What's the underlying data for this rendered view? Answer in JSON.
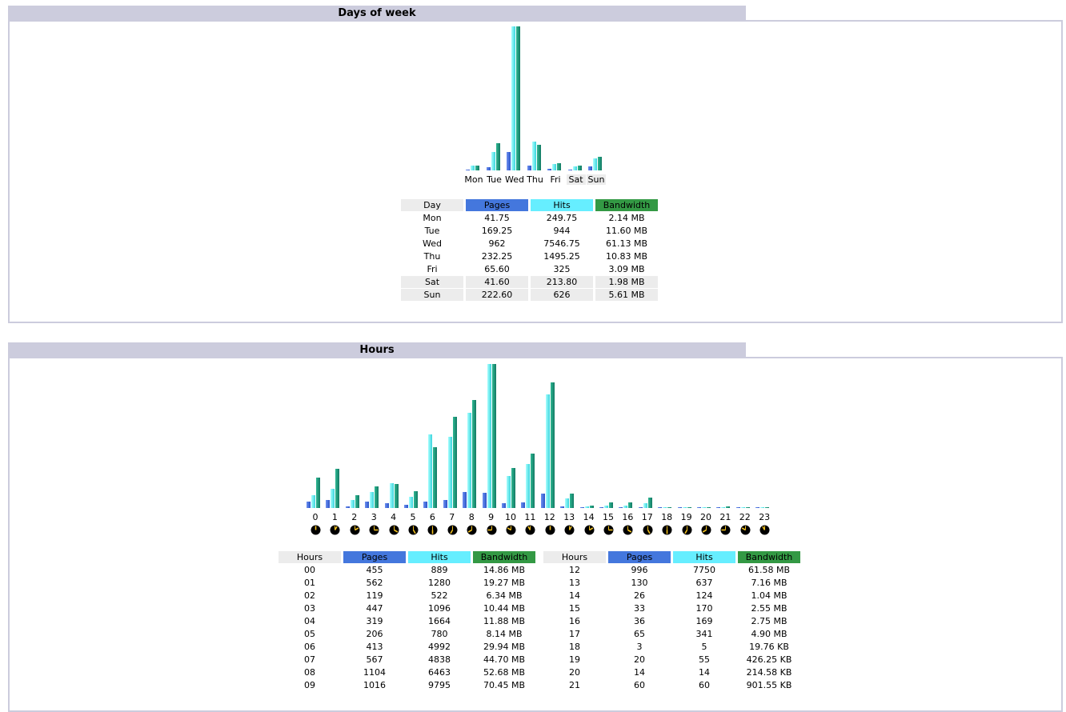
{
  "colors": {
    "pages": "#4477dd",
    "hits": "#66eeff",
    "bandwidth": "#339944"
  },
  "days": {
    "title": "Days of week",
    "headers": [
      "Day",
      "Pages",
      "Hits",
      "Bandwidth"
    ],
    "rows": [
      {
        "day": "Mon",
        "pages": "41.75",
        "hits": "249.75",
        "bandwidth": "2.14 MB",
        "weekend": false
      },
      {
        "day": "Tue",
        "pages": "169.25",
        "hits": "944",
        "bandwidth": "11.60 MB",
        "weekend": false
      },
      {
        "day": "Wed",
        "pages": "962",
        "hits": "7546.75",
        "bandwidth": "61.13 MB",
        "weekend": false
      },
      {
        "day": "Thu",
        "pages": "232.25",
        "hits": "1495.25",
        "bandwidth": "10.83 MB",
        "weekend": false
      },
      {
        "day": "Fri",
        "pages": "65.60",
        "hits": "325",
        "bandwidth": "3.09 MB",
        "weekend": false
      },
      {
        "day": "Sat",
        "pages": "41.60",
        "hits": "213.80",
        "bandwidth": "1.98 MB",
        "weekend": true
      },
      {
        "day": "Sun",
        "pages": "222.60",
        "hits": "626",
        "bandwidth": "5.61 MB",
        "weekend": true
      }
    ]
  },
  "hours": {
    "title": "Hours",
    "headers": [
      "Hours",
      "Pages",
      "Hits",
      "Bandwidth"
    ],
    "left_rows": [
      [
        "00",
        "455",
        "889",
        "14.86 MB"
      ],
      [
        "01",
        "562",
        "1280",
        "19.27 MB"
      ],
      [
        "02",
        "119",
        "522",
        "6.34 MB"
      ],
      [
        "03",
        "447",
        "1096",
        "10.44 MB"
      ],
      [
        "04",
        "319",
        "1664",
        "11.88 MB"
      ],
      [
        "05",
        "206",
        "780",
        "8.14 MB"
      ],
      [
        "06",
        "413",
        "4992",
        "29.94 MB"
      ],
      [
        "07",
        "567",
        "4838",
        "44.70 MB"
      ],
      [
        "08",
        "1104",
        "6463",
        "52.68 MB"
      ],
      [
        "09",
        "1016",
        "9795",
        "70.45 MB"
      ]
    ],
    "right_rows": [
      [
        "12",
        "996",
        "7750",
        "61.58 MB"
      ],
      [
        "13",
        "130",
        "637",
        "7.16 MB"
      ],
      [
        "14",
        "26",
        "124",
        "1.04 MB"
      ],
      [
        "15",
        "33",
        "170",
        "2.55 MB"
      ],
      [
        "16",
        "36",
        "169",
        "2.75 MB"
      ],
      [
        "17",
        "65",
        "341",
        "4.90 MB"
      ],
      [
        "18",
        "3",
        "5",
        "19.76 KB"
      ],
      [
        "19",
        "20",
        "55",
        "426.25 KB"
      ],
      [
        "20",
        "14",
        "14",
        "214.58 KB"
      ],
      [
        "21",
        "60",
        "60",
        "901.55 KB"
      ]
    ]
  },
  "chart_data": [
    {
      "type": "bar",
      "title": "Days of week",
      "categories": [
        "Mon",
        "Tue",
        "Wed",
        "Thu",
        "Fri",
        "Sat",
        "Sun"
      ],
      "series": [
        {
          "name": "Pages",
          "values": [
            41.75,
            169.25,
            962,
            232.25,
            65.6,
            41.6,
            222.6
          ]
        },
        {
          "name": "Hits",
          "values": [
            249.75,
            944,
            7546.75,
            1495.25,
            325,
            213.8,
            626
          ]
        },
        {
          "name": "Bandwidth (MB)",
          "values": [
            2.14,
            11.6,
            61.13,
            10.83,
            3.09,
            1.98,
            5.61
          ]
        }
      ]
    },
    {
      "type": "bar",
      "title": "Hours",
      "categories": [
        "0",
        "1",
        "2",
        "3",
        "4",
        "5",
        "6",
        "7",
        "8",
        "9",
        "10",
        "11",
        "12",
        "13",
        "14",
        "15",
        "16",
        "17",
        "18",
        "19",
        "20",
        "21",
        "22",
        "23"
      ],
      "series": [
        {
          "name": "Pages",
          "values": [
            455,
            562,
            119,
            447,
            319,
            206,
            413,
            567,
            1104,
            1016,
            330,
            380,
            996,
            130,
            26,
            33,
            36,
            65,
            3,
            20,
            14,
            60,
            5,
            5
          ]
        },
        {
          "name": "Hits",
          "values": [
            889,
            1280,
            522,
            1096,
            1664,
            780,
            4992,
            4838,
            6463,
            9795,
            2180,
            3000,
            7750,
            637,
            124,
            170,
            169,
            341,
            5,
            55,
            14,
            60,
            20,
            20
          ]
        },
        {
          "name": "Bandwidth (MB)",
          "values": [
            14.86,
            19.27,
            6.34,
            10.44,
            11.88,
            8.14,
            29.94,
            44.7,
            52.68,
            70.45,
            19.6,
            26.6,
            61.58,
            7.16,
            1.04,
            2.55,
            2.75,
            4.9,
            0.02,
            0.43,
            0.21,
            0.9,
            0.3,
            0.3
          ]
        }
      ]
    }
  ]
}
